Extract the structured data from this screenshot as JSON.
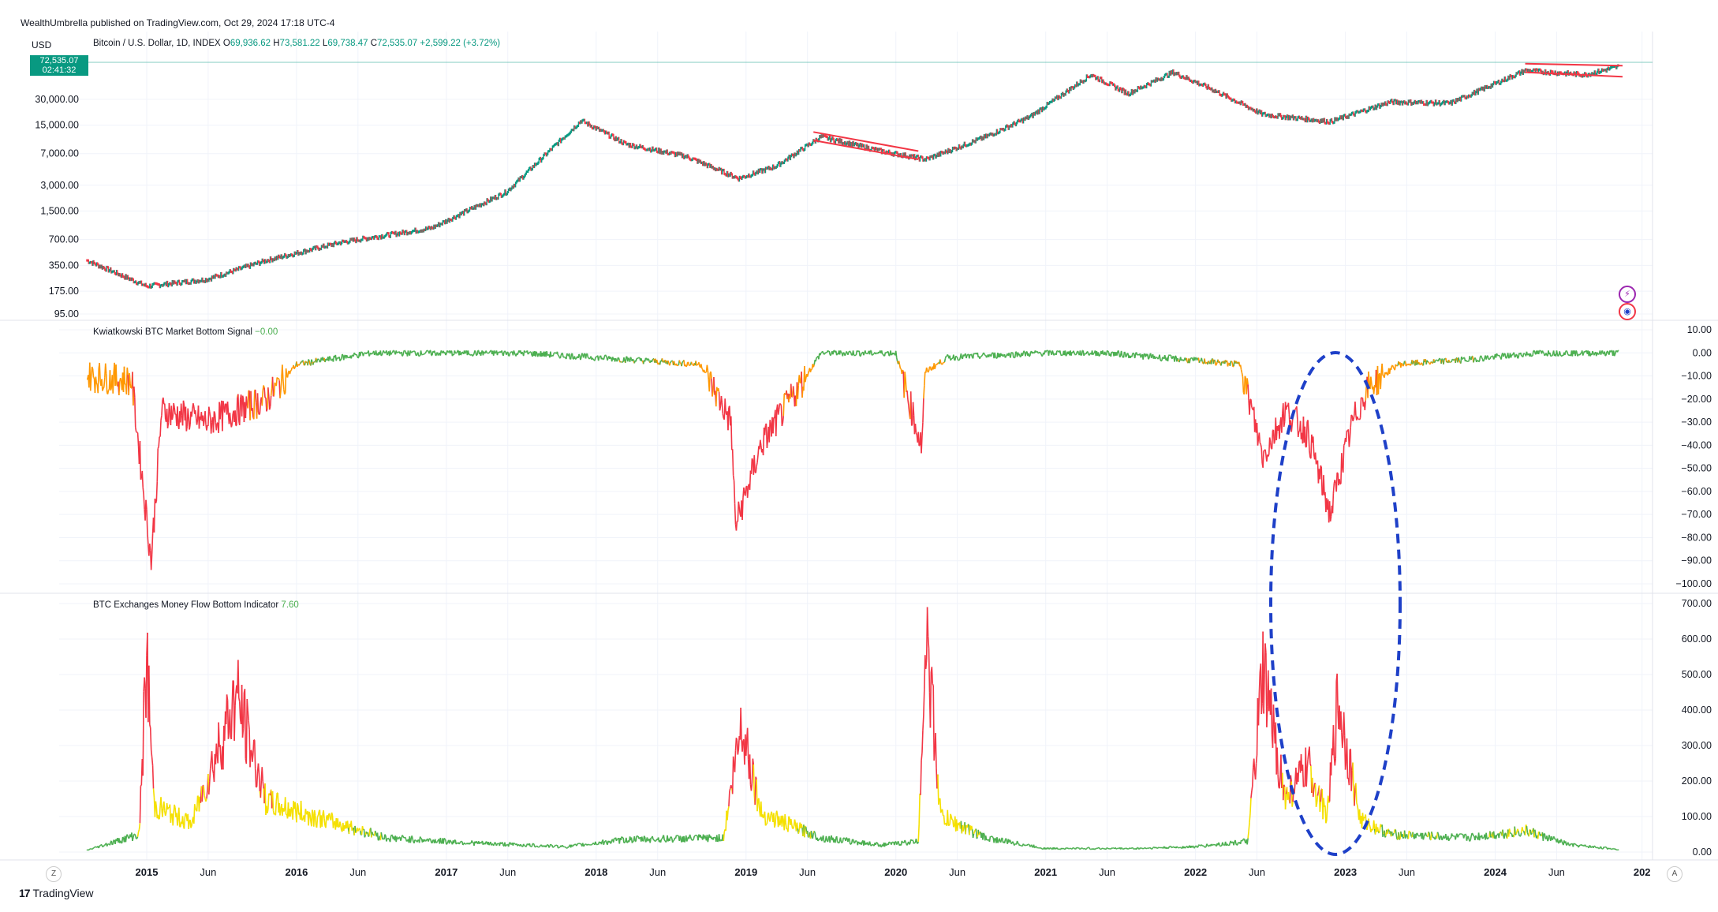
{
  "header": {
    "publisher": "WealthUmbrella published on TradingView.com, Oct 29, 2024 17:18 UTC-4",
    "currency": "USD"
  },
  "price_pane": {
    "symbol": "Bitcoin / U.S. Dollar, 1D, INDEX",
    "o_label": "O",
    "o_value": "69,936.62",
    "h_label": "H",
    "h_value": "73,581.22",
    "l_label": "L",
    "l_value": "69,738.47",
    "c_label": "C",
    "c_value": "72,535.07",
    "change": "+2,599.22 (+3.72%)",
    "last_price": "72,535.07",
    "countdown": "02:41:32",
    "y_ticks": [
      "30,000.00",
      "15,000.00",
      "7,000.00",
      "3,000.00",
      "1,500.00",
      "700.00",
      "350.00",
      "175.00",
      "95.00"
    ]
  },
  "signal_pane": {
    "title": "Kwiatkowski BTC Market Bottom Signal",
    "value": "−0.00",
    "y_ticks": [
      "10.00",
      "0.00",
      "−10.00",
      "−20.00",
      "−30.00",
      "−40.00",
      "−50.00",
      "−60.00",
      "−70.00",
      "−80.00",
      "−90.00",
      "−100.00"
    ]
  },
  "flow_pane": {
    "title": "BTC Exchanges Money Flow Bottom Indicator",
    "value": "7.60",
    "y_ticks": [
      "700.00",
      "600.00",
      "500.00",
      "400.00",
      "300.00",
      "200.00",
      "100.00",
      "0.00"
    ]
  },
  "x_axis": {
    "labels": [
      "2015",
      "Jun",
      "2016",
      "Jun",
      "2017",
      "Jun",
      "2018",
      "Jun",
      "2019",
      "Jun",
      "2020",
      "Jun",
      "2021",
      "Jun",
      "2022",
      "Jun",
      "2023",
      "Jun",
      "2024",
      "Jun",
      "202"
    ],
    "bold": [
      true,
      false,
      true,
      false,
      true,
      false,
      true,
      false,
      true,
      false,
      true,
      false,
      true,
      false,
      true,
      false,
      true,
      false,
      true,
      false,
      true
    ]
  },
  "footer": {
    "brand": "TradingView",
    "logo": "17"
  },
  "corner_left": "Z",
  "corner_right": "A",
  "colors": {
    "up": "#089981",
    "down": "#f23645",
    "signal_green": "#4caf50",
    "signal_orange": "#ff9800",
    "signal_red": "#f23645",
    "flow_yellow": "#f5e000",
    "annotation_blue": "#1e40c8",
    "channel_red": "#f23645"
  },
  "chart_data": [
    {
      "type": "line",
      "title": "Bitcoin / U.S. Dollar, 1D, INDEX",
      "log_scale": true,
      "ylim": [
        90,
        100000
      ],
      "x": [
        2014.6,
        2015.0,
        2015.4,
        2015.8,
        2016.3,
        2016.9,
        2017.4,
        2017.9,
        2018.2,
        2018.6,
        2018.95,
        2019.2,
        2019.5,
        2019.9,
        2020.2,
        2020.6,
        2020.9,
        2021.3,
        2021.55,
        2021.85,
        2022.1,
        2022.45,
        2022.9,
        2023.3,
        2023.7,
        2024.2,
        2024.6,
        2024.83
      ],
      "values": [
        400,
        200,
        240,
        400,
        650,
        950,
        2500,
        17000,
        9000,
        6500,
        3600,
        5000,
        11000,
        7500,
        6000,
        11000,
        19000,
        58000,
        35000,
        62000,
        40000,
        20000,
        16500,
        28000,
        27000,
        65000,
        58000,
        72535
      ],
      "annotations": [
        "descending channel 2019-2020",
        "channel 2024"
      ]
    },
    {
      "type": "line",
      "title": "Kwiatkowski BTC Market Bottom Signal",
      "ylim": [
        -100,
        10
      ],
      "x": [
        2014.6,
        2014.9,
        2015.03,
        2015.1,
        2015.4,
        2015.8,
        2016.0,
        2016.5,
        2017.5,
        2018.0,
        2018.7,
        2018.9,
        2018.93,
        2019.1,
        2019.3,
        2019.5,
        2020.0,
        2020.17,
        2020.2,
        2020.35,
        2021.0,
        2021.4,
        2022.3,
        2022.45,
        2022.6,
        2022.75,
        2022.9,
        2022.95,
        2023.05,
        2023.15,
        2023.35,
        2023.8,
        2024.3,
        2024.83
      ],
      "values": [
        -10,
        -12,
        -90,
        -25,
        -30,
        -20,
        -5,
        0,
        0,
        -2,
        -5,
        -30,
        -75,
        -40,
        -20,
        0,
        0,
        -40,
        -8,
        -2,
        0,
        0,
        -5,
        -45,
        -25,
        -35,
        -70,
        -55,
        -30,
        -15,
        -5,
        -3,
        0,
        0
      ]
    },
    {
      "type": "line",
      "title": "BTC Exchanges Money Flow Bottom Indicator",
      "ylim": [
        0,
        700
      ],
      "x": [
        2014.6,
        2014.95,
        2015.0,
        2015.05,
        2015.3,
        2015.6,
        2015.8,
        2016.2,
        2016.6,
        2017.2,
        2017.8,
        2018.2,
        2018.85,
        2018.97,
        2019.1,
        2019.5,
        2019.9,
        2020.15,
        2020.2,
        2020.3,
        2020.6,
        2021.0,
        2021.6,
        2022.0,
        2022.35,
        2022.45,
        2022.6,
        2022.75,
        2022.88,
        2022.95,
        2023.1,
        2023.3,
        2023.8,
        2024.2,
        2024.5,
        2024.83
      ],
      "values": [
        5,
        50,
        550,
        130,
        80,
        440,
        140,
        90,
        40,
        25,
        15,
        35,
        40,
        370,
        110,
        40,
        20,
        30,
        640,
        100,
        40,
        10,
        10,
        15,
        30,
        500,
        150,
        240,
        100,
        430,
        90,
        50,
        40,
        60,
        20,
        7.6
      ]
    }
  ]
}
